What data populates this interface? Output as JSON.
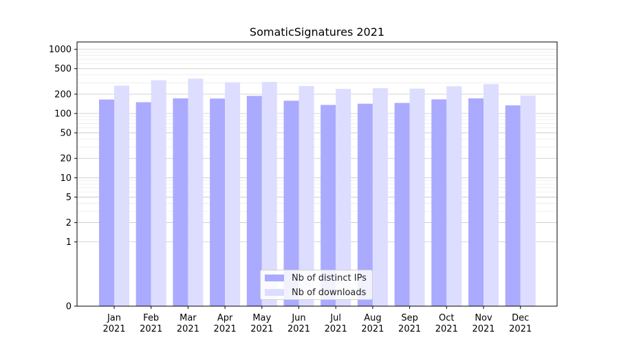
{
  "chart_data": {
    "type": "bar",
    "title": "SomaticSignatures 2021",
    "xlabel": "",
    "ylabel": "",
    "yscale": "symlog",
    "ylim": [
      0,
      1300
    ],
    "yticks": [
      0,
      1,
      2,
      5,
      10,
      20,
      50,
      100,
      200,
      500,
      1000
    ],
    "ytick_labels": [
      "0",
      "1",
      "2",
      "5",
      "10",
      "20",
      "50",
      "100",
      "200",
      "500",
      "1000"
    ],
    "categories": [
      [
        "Jan",
        "2021"
      ],
      [
        "Feb",
        "2021"
      ],
      [
        "Mar",
        "2021"
      ],
      [
        "Apr",
        "2021"
      ],
      [
        "May",
        "2021"
      ],
      [
        "Jun",
        "2021"
      ],
      [
        "Jul",
        "2021"
      ],
      [
        "Aug",
        "2021"
      ],
      [
        "Sep",
        "2021"
      ],
      [
        "Oct",
        "2021"
      ],
      [
        "Nov",
        "2021"
      ],
      [
        "Dec",
        "2021"
      ]
    ],
    "series": [
      {
        "name": "Nb of distinct IPs",
        "color": "#aaaaff",
        "values": [
          165,
          150,
          172,
          171,
          188,
          158,
          136,
          142,
          146,
          166,
          172,
          134
        ]
      },
      {
        "name": "Nb of downloads",
        "color": "#ddddff",
        "values": [
          272,
          330,
          350,
          306,
          310,
          268,
          242,
          248,
          244,
          266,
          287,
          190
        ]
      }
    ],
    "grid": true,
    "legend_position": "bottom-center"
  }
}
